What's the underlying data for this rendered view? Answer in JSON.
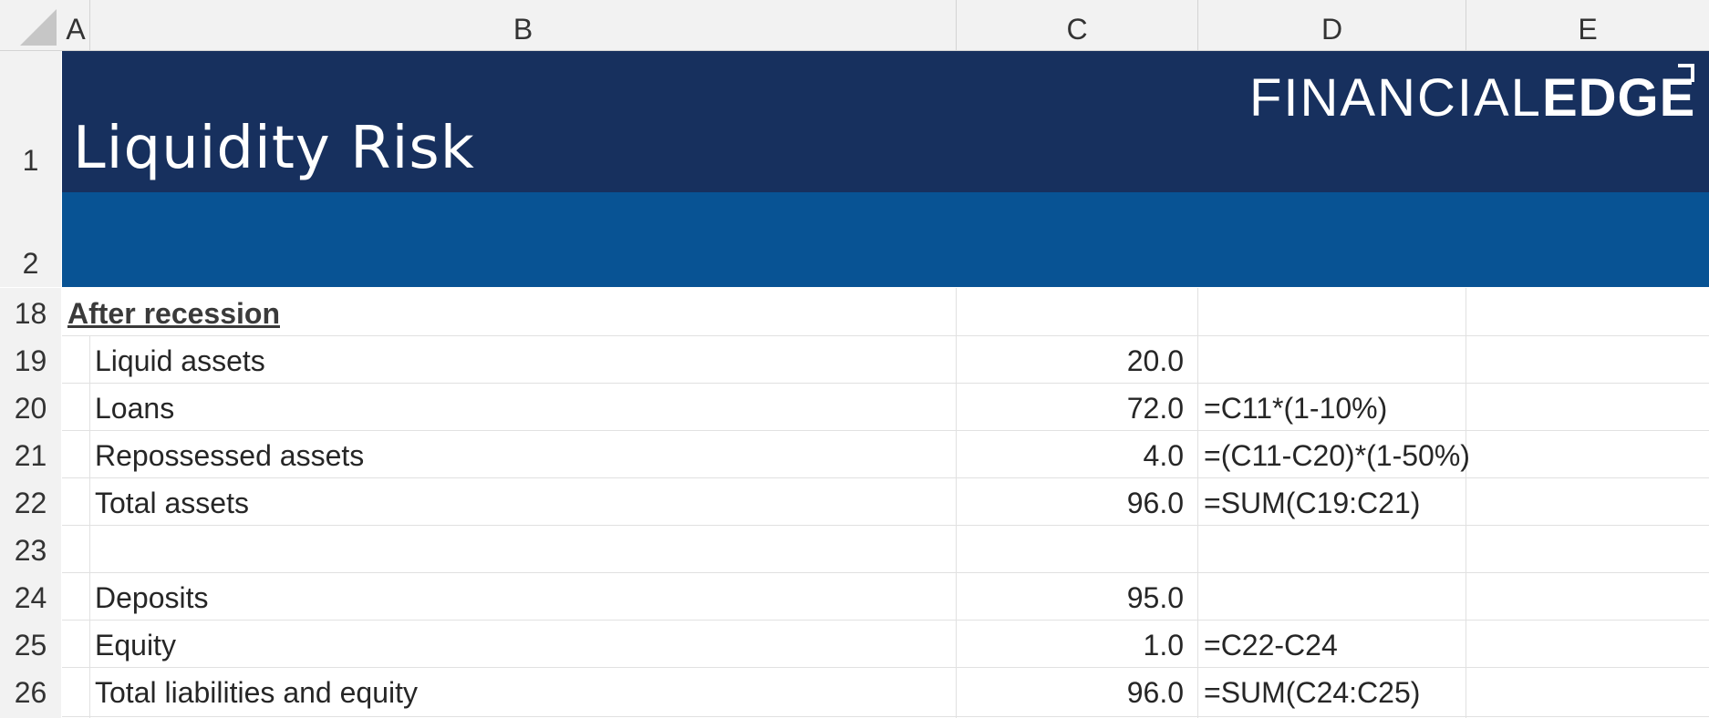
{
  "columns": [
    "A",
    "B",
    "C",
    "D",
    "E"
  ],
  "banner": {
    "title": "Liquidity Risk",
    "logo_light": "FINANCIAL",
    "logo_bold": "EDGE",
    "colors": {
      "dark": "#17305e",
      "mid": "#085394"
    }
  },
  "rows": [
    {
      "num": "1"
    },
    {
      "num": "2"
    },
    {
      "num": "18",
      "b": "After recession",
      "heading": true,
      "c": "",
      "d": ""
    },
    {
      "num": "19",
      "b": "Liquid assets",
      "c": "20.0",
      "d": ""
    },
    {
      "num": "20",
      "b": "Loans",
      "c": "72.0",
      "d": "=C11*(1-10%)"
    },
    {
      "num": "21",
      "b": "Repossessed assets",
      "c": "4.0",
      "d": "=(C11-C20)*(1-50%)"
    },
    {
      "num": "22",
      "b": "Total assets",
      "c": "96.0",
      "d": "=SUM(C19:C21)"
    },
    {
      "num": "23",
      "b": "",
      "c": "",
      "d": ""
    },
    {
      "num": "24",
      "b": "Deposits",
      "c": "95.0",
      "d": ""
    },
    {
      "num": "25",
      "b": "Equity",
      "c": "1.0",
      "d": "=C22-C24"
    },
    {
      "num": "26",
      "b": "Total liabilities and equity",
      "c": "96.0",
      "d": "=SUM(C24:C25)"
    }
  ]
}
